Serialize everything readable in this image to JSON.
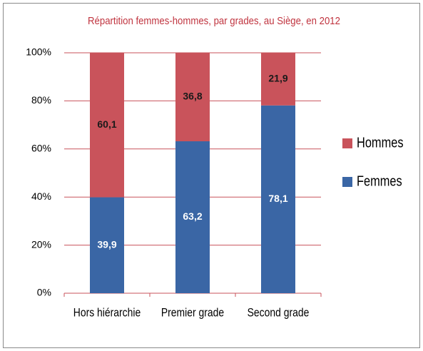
{
  "chart_data": {
    "type": "stacked_bar",
    "title": "Répartition femmes-hommes, par grades, au Siège, en 2012",
    "categories": [
      "Hors hiérarchie",
      "Premier grade",
      "Second grade"
    ],
    "series": [
      {
        "name": "Femmes",
        "color": "#3a66a5",
        "values": [
          39.9,
          63.2,
          78.1
        ],
        "value_labels": [
          "39,9",
          "63,2",
          "78,1"
        ]
      },
      {
        "name": "Hommes",
        "color": "#c9535b",
        "values": [
          60.1,
          36.8,
          21.9
        ],
        "value_labels": [
          "60,1",
          "36,8",
          "21,9"
        ]
      }
    ],
    "ylim": [
      0,
      100
    ],
    "yticks": [
      {
        "value": 0,
        "label": "0%"
      },
      {
        "value": 20,
        "label": "20%"
      },
      {
        "value": 40,
        "label": "40%"
      },
      {
        "value": 60,
        "label": "60%"
      },
      {
        "value": 80,
        "label": "80%"
      },
      {
        "value": 100,
        "label": "100%"
      }
    ],
    "grid": true,
    "legend": "right"
  }
}
